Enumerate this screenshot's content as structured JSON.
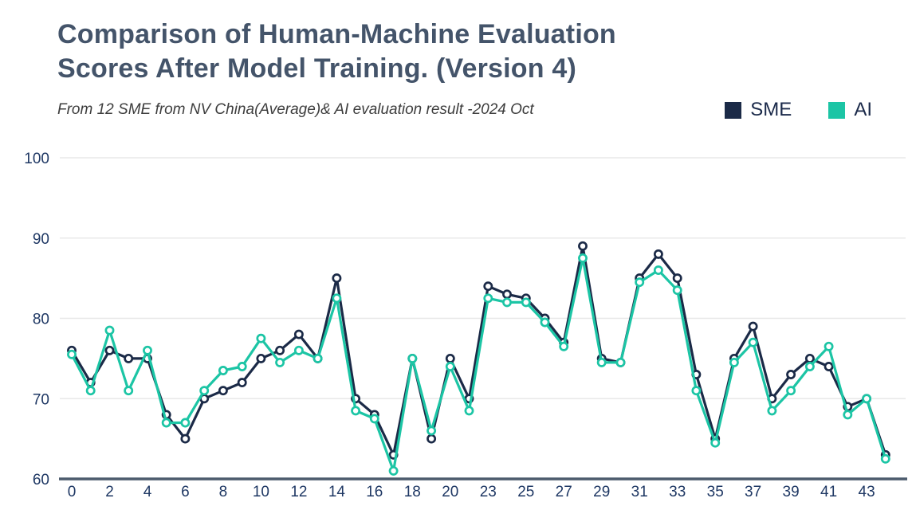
{
  "header": {
    "title_lines": [
      "Comparison of Human-Machine Evaluation",
      "Scores After Model Training. (Version 4)"
    ],
    "subtitle": "From 12 SME from NV China(Average)& AI evaluation result -2024 Oct"
  },
  "legend": {
    "items": [
      {
        "label": "SME",
        "color": "#1b2a47"
      },
      {
        "label": "AI",
        "color": "#1cc5a5"
      }
    ]
  },
  "chart_data": {
    "type": "line",
    "title": "Comparison of Human-Machine Evaluation Scores After Model Training. (Version 4)",
    "subtitle": "From 12 SME from NV China(Average)& AI evaluation result -2024 Oct",
    "ylim": [
      60,
      100
    ],
    "y_ticks": [
      60,
      70,
      80,
      90,
      100
    ],
    "grid": "horizontal",
    "legend_position": "top-right",
    "x_labels": [
      "0",
      "",
      "2",
      "",
      "4",
      "",
      "6",
      "",
      "8",
      "",
      "10",
      "",
      "12",
      "",
      "14",
      "",
      "16",
      "",
      "18",
      "",
      "20",
      "",
      "23",
      "",
      "25",
      "",
      "27",
      "",
      "29",
      "",
      "31",
      "",
      "33",
      "",
      "35",
      "",
      "37",
      "",
      "39",
      "",
      "41",
      "",
      "43",
      ""
    ],
    "series": [
      {
        "name": "SME",
        "color": "#1b2a47",
        "values": [
          76,
          72,
          76,
          75,
          75,
          68,
          65,
          70,
          71,
          72,
          75,
          76,
          78,
          75,
          85,
          70,
          68,
          63,
          75,
          65,
          75,
          70,
          84,
          83,
          82.5,
          80,
          77,
          89,
          75,
          74.5,
          85,
          88,
          85,
          73,
          65,
          75,
          79,
          70,
          73,
          75,
          74,
          69,
          70,
          63
        ]
      },
      {
        "name": "AI",
        "color": "#1cc5a5",
        "values": [
          75.5,
          71,
          78.5,
          71,
          76,
          67,
          67,
          71,
          73.5,
          74,
          77.5,
          74.5,
          76,
          75,
          82.5,
          68.5,
          67.5,
          61,
          75,
          66,
          74,
          68.5,
          82.5,
          82,
          82,
          79.5,
          76.5,
          87.5,
          74.5,
          74.5,
          84.5,
          86,
          83.5,
          71,
          64.5,
          74.5,
          77,
          68.5,
          71,
          74,
          76.5,
          68,
          70,
          62.5
        ]
      }
    ]
  }
}
